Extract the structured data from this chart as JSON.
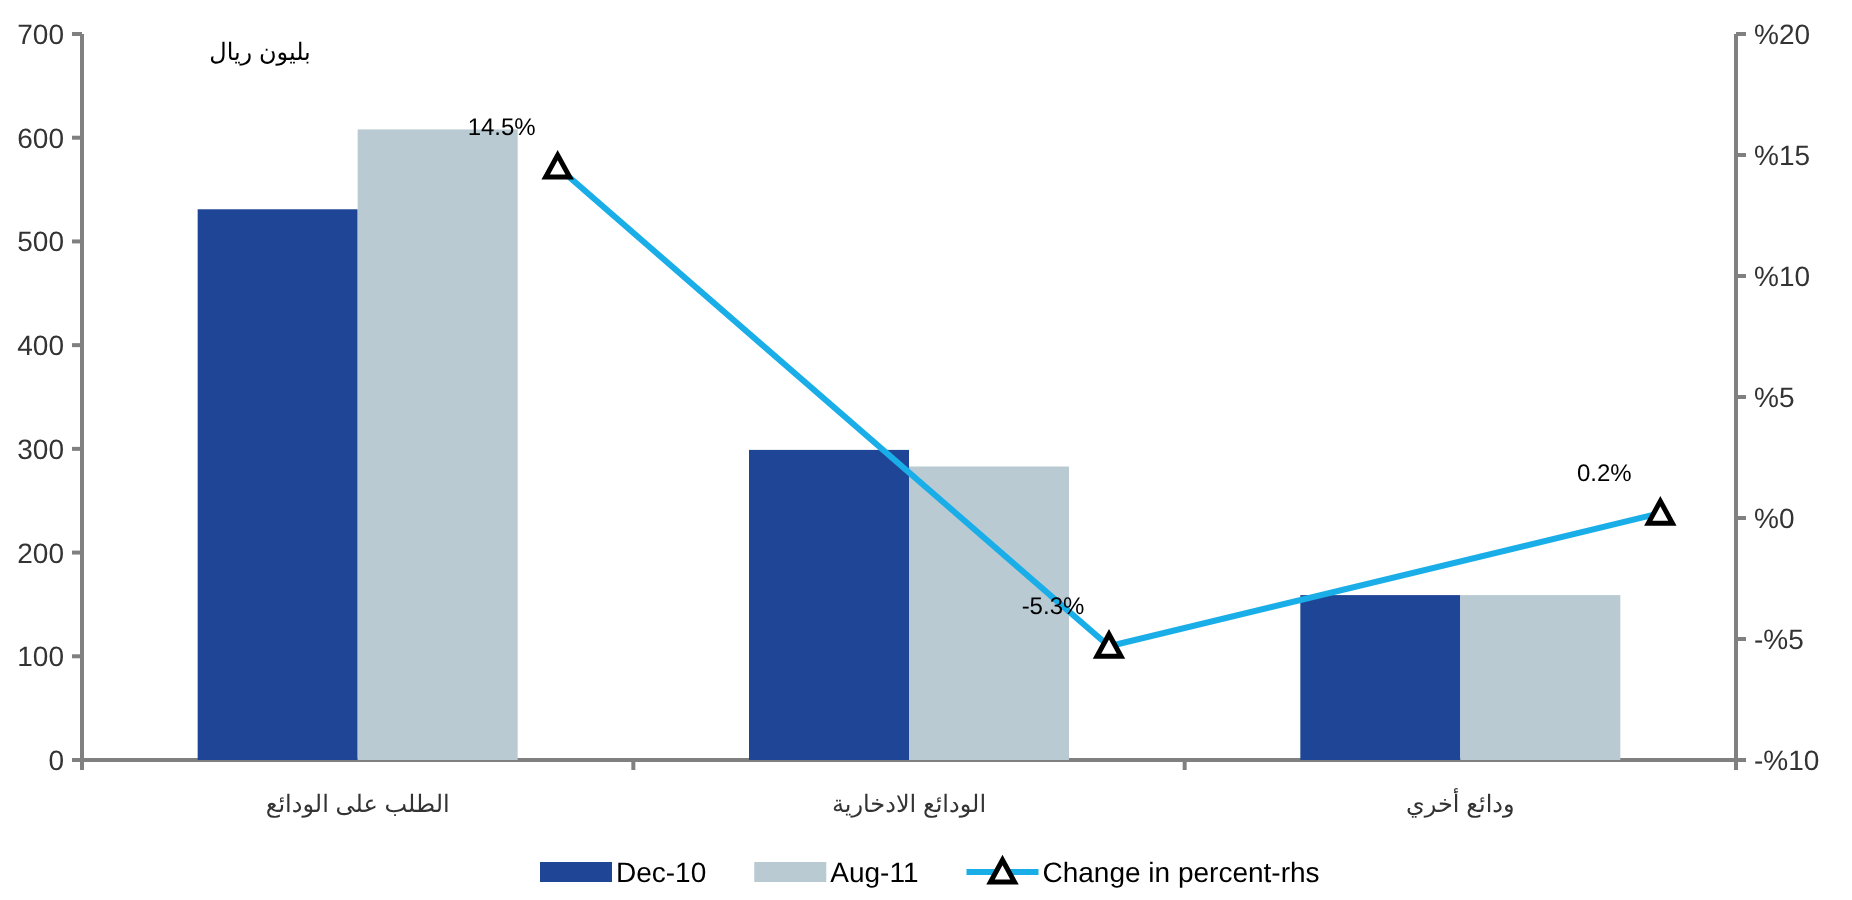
{
  "chart_data": {
    "type": "bar",
    "ylabel": "بليون ريال",
    "categories": [
      "الطلب على الودائع",
      "الودائع الادخارية",
      "ودائع أخري"
    ],
    "series": [
      {
        "name": "Dec-10",
        "color": "#1f4696",
        "values": [
          531,
          299,
          159
        ]
      },
      {
        "name": "Aug-11",
        "color": "#b9cad3",
        "values": [
          608,
          283,
          159
        ]
      },
      {
        "name": "Change in percent-rhs",
        "type": "line",
        "axis": "y2",
        "color": "#1aaee8",
        "marker": "triangle",
        "values": [
          14.5,
          -5.3,
          0.2
        ],
        "value_labels": [
          "14.5%",
          "-5.3%",
          "0.2%"
        ]
      }
    ],
    "ylim": [
      0,
      700
    ],
    "yticks": [
      0,
      100,
      200,
      300,
      400,
      500,
      600,
      700
    ],
    "y2lim": [
      -10,
      20
    ],
    "y2ticks": [
      {
        "value": -10,
        "label": "-%10"
      },
      {
        "value": -5,
        "label": "-%5"
      },
      {
        "value": 0,
        "label": "%0"
      },
      {
        "value": 5,
        "label": "%5"
      },
      {
        "value": 10,
        "label": "%10"
      },
      {
        "value": 15,
        "label": "%15"
      },
      {
        "value": 20,
        "label": "%20"
      }
    ],
    "grid": false,
    "legend": "bottom"
  }
}
